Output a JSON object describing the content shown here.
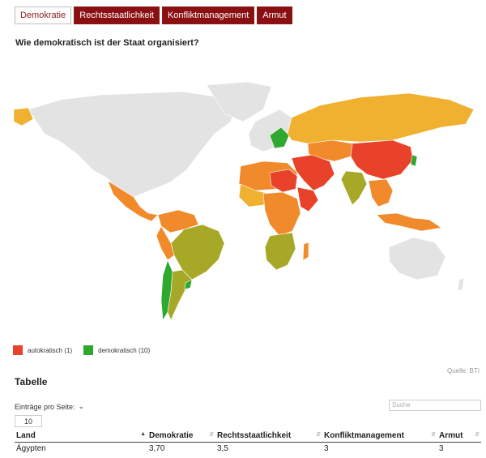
{
  "tabs": [
    "Demokratie",
    "Rechtsstaatlichkeit",
    "Konfliktmanagement",
    "Armut"
  ],
  "active_tab": "Demokratie",
  "map_title": "Wie demokratisch ist der Staat organisiert?",
  "legend": {
    "low": {
      "label": "autokratisch (1)",
      "color": "#e8432a"
    },
    "high": {
      "label": "demokratisch (10)",
      "color": "#2ea82e"
    }
  },
  "source": "Quelle: BTI",
  "table_title": "Tabelle",
  "entries_label": "Einträge pro Seite:",
  "entries_value": "10",
  "search_placeholder": "Suche",
  "table": {
    "columns": [
      "Land",
      "Demokratie",
      "Rechtsstaatlichkeit",
      "Konfliktmanagement",
      "Armut"
    ],
    "rows": [
      [
        "Ägypten",
        "3,70",
        "3,5",
        "3",
        "3"
      ]
    ]
  },
  "map_colors": {
    "no_data": "#e3e3e3",
    "ocean": "#ffffff",
    "autocratic": "#e8432a",
    "hybrid_orange": "#f08a2a",
    "moderate_yellow": "#f0b030",
    "olive": "#a8a828",
    "democratic": "#2ea82e"
  }
}
